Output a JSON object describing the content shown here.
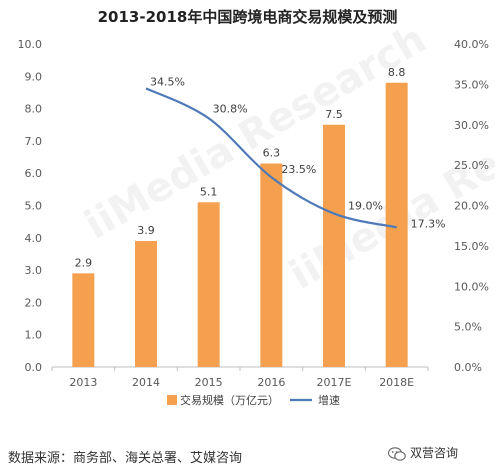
{
  "chart_data": {
    "type": "bar",
    "title": "2013-2018年中国跨境电商交易规模及预测",
    "categories": [
      "2013",
      "2014",
      "2015",
      "2016",
      "2017E",
      "2018E"
    ],
    "series": [
      {
        "name": "交易规模（万亿元）",
        "type": "bar",
        "axis": "left",
        "values": [
          2.9,
          3.9,
          5.1,
          6.3,
          7.5,
          8.8
        ],
        "labels": [
          "2.9",
          "3.9",
          "5.1",
          "6.3",
          "7.5",
          "8.8"
        ],
        "color": "#F5A04E"
      },
      {
        "name": "增速",
        "type": "line",
        "axis": "right",
        "x": [
          "2014",
          "2015",
          "2016",
          "2017E",
          "2018E"
        ],
        "values": [
          34.5,
          30.8,
          23.5,
          19.0,
          17.3
        ],
        "labels": [
          "34.5%",
          "30.8%",
          "23.5%",
          "19.0%",
          "17.3%"
        ],
        "color": "#4E7AB8"
      }
    ],
    "y_left": {
      "min": 0,
      "max": 10,
      "ticks": [
        "0.0",
        "1.0",
        "2.0",
        "3.0",
        "4.0",
        "5.0",
        "6.0",
        "7.0",
        "8.0",
        "9.0",
        "10.0"
      ]
    },
    "y_right": {
      "min": 0,
      "max": 40,
      "ticks": [
        "0.0%",
        "5.0%",
        "10.0%",
        "15.0%",
        "20.0%",
        "25.0%",
        "30.0%",
        "35.0%",
        "40.0%"
      ]
    },
    "grid": false,
    "legend": "bottom"
  },
  "footer": {
    "source": "数据来源：商务部、海关总署、艾媒咨询",
    "brand": "双营咨询",
    "brand_icon": "wechat-icon"
  },
  "watermark": "iiMedia Research",
  "colors": {
    "bar": "#F5A04E",
    "line": "#4E7AB8",
    "axis": "#BFBFBF",
    "text": "#595959"
  }
}
